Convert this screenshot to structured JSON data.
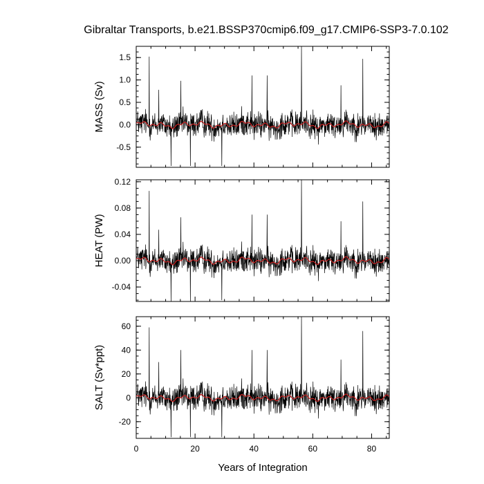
{
  "figure": {
    "title": "Gibraltar Transports, b.e21.BSSP370cmip6.f09_g17.CMIP6-SSP3-7.0.102"
  },
  "chart_data": [
    {
      "type": "line",
      "id": "mass",
      "title": "",
      "xlabel": "",
      "ylabel": "MASS (Sv)",
      "xlim": [
        0,
        86
      ],
      "ylim": [
        -0.95,
        1.75
      ],
      "yticks": [
        -0.5,
        0.0,
        0.5,
        1.0,
        1.5
      ],
      "ytick_labels": [
        "-0.5",
        "0.0",
        "0.5",
        "1.0",
        "1.5"
      ],
      "grid": false,
      "noise_amp": 0.2,
      "smooth_amp": 0.07,
      "spikes": [
        [
          4.4,
          1.52
        ],
        [
          7.7,
          0.78
        ],
        [
          11.8,
          -0.92
        ],
        [
          15.2,
          0.98
        ],
        [
          18.4,
          -0.92
        ],
        [
          29.1,
          -0.92
        ],
        [
          39.3,
          1.1
        ],
        [
          44.5,
          1.1
        ],
        [
          56.2,
          1.75
        ],
        [
          69.6,
          0.88
        ],
        [
          77.0,
          1.47
        ]
      ],
      "series": [
        {
          "name": "",
          "color": "#000000",
          "style": "monthly transport series"
        },
        {
          "name": "",
          "color": "#cc2222",
          "style": "smoothed series"
        }
      ]
    },
    {
      "type": "line",
      "id": "heat",
      "title": "",
      "xlabel": "",
      "ylabel": "HEAT (PW)",
      "xlim": [
        0,
        86
      ],
      "ylim": [
        -0.062,
        0.123
      ],
      "yticks": [
        -0.04,
        0.0,
        0.04,
        0.08,
        0.12
      ],
      "ytick_labels": [
        "-0.04",
        "0.00",
        "0.04",
        "0.08",
        "0.12"
      ],
      "grid": false,
      "noise_amp": 0.014,
      "smooth_amp": 0.005,
      "spikes": [
        [
          4.4,
          0.106
        ],
        [
          7.7,
          0.047
        ],
        [
          11.8,
          -0.062
        ],
        [
          15.2,
          0.066
        ],
        [
          18.4,
          -0.062
        ],
        [
          29.1,
          -0.06
        ],
        [
          39.3,
          0.07
        ],
        [
          44.5,
          0.07
        ],
        [
          56.2,
          0.123
        ],
        [
          69.6,
          0.06
        ],
        [
          77.0,
          0.09
        ]
      ],
      "series": [
        {
          "name": "",
          "color": "#000000",
          "style": "monthly transport series"
        },
        {
          "name": "",
          "color": "#cc2222",
          "style": "smoothed series"
        }
      ]
    },
    {
      "type": "line",
      "id": "salt",
      "title": "",
      "xlabel": "Years of Integration",
      "ylabel": "SALT (Sv*ppt)",
      "xlim": [
        0,
        86
      ],
      "ylim": [
        -34,
        68
      ],
      "yticks": [
        -20,
        0,
        20,
        40,
        60
      ],
      "ytick_labels": [
        "-20",
        "0",
        "20",
        "40",
        "60"
      ],
      "xticks": [
        0,
        20,
        40,
        60,
        80
      ],
      "xtick_labels": [
        "0",
        "20",
        "40",
        "60",
        "80"
      ],
      "grid": false,
      "noise_amp": 8,
      "smooth_amp": 2.5,
      "spikes": [
        [
          4.4,
          59
        ],
        [
          7.7,
          30
        ],
        [
          11.8,
          -33
        ],
        [
          15.2,
          40
        ],
        [
          18.4,
          -33
        ],
        [
          29.1,
          -33
        ],
        [
          39.3,
          40
        ],
        [
          44.5,
          40
        ],
        [
          56.2,
          68
        ],
        [
          69.6,
          32
        ],
        [
          77.0,
          56
        ]
      ],
      "series": [
        {
          "name": "",
          "color": "#000000",
          "style": "monthly transport series"
        },
        {
          "name": "",
          "color": "#cc2222",
          "style": "smoothed series"
        }
      ]
    }
  ]
}
